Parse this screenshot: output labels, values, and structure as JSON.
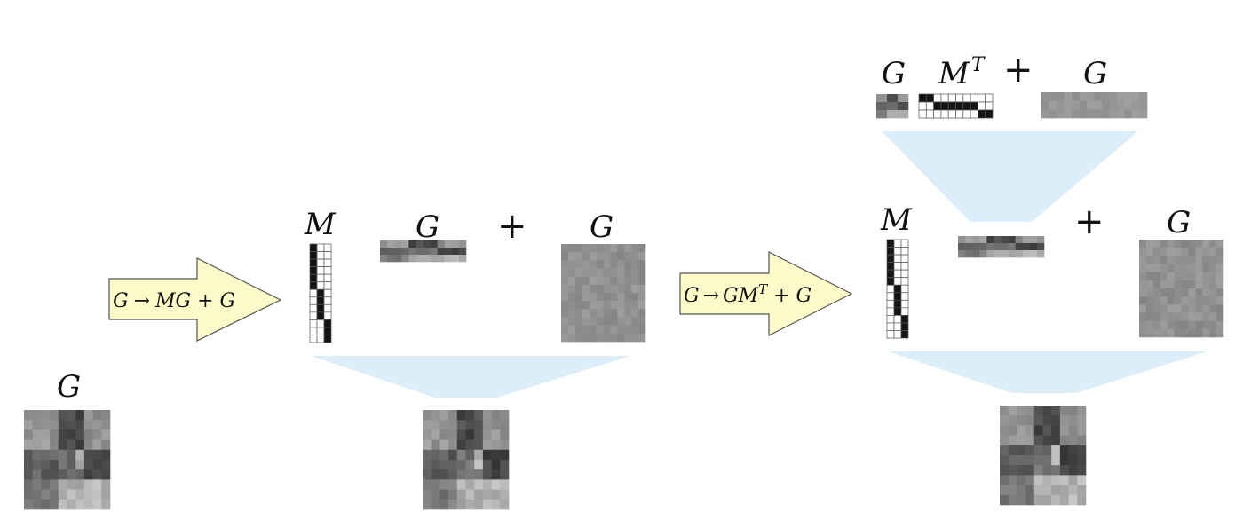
{
  "symbols": {
    "g": "G",
    "m": "M",
    "m_base": "M",
    "m_sup": "T",
    "plus": "+"
  },
  "arrows": {
    "first": {
      "pre": "G",
      "op": "→",
      "post": "MG + G"
    },
    "second": {
      "pre": "G",
      "op": "→",
      "post": "GM",
      "sup": "T",
      "tail": " + G"
    }
  },
  "colors": {
    "arrow_fill": "#fbfac8",
    "arrow_stroke": "#555555",
    "funnel": "#dbeefa",
    "matrix_on": "#141414",
    "matrix_off": "#ffffff",
    "grid_line": "#555555"
  },
  "one_hot_vertical": [
    0,
    0,
    0,
    0,
    0,
    0,
    1,
    1,
    1,
    1,
    2,
    2,
    2
  ],
  "one_hot_horizontal": [
    0,
    0,
    1,
    1,
    1,
    1,
    1,
    1,
    2,
    2
  ]
}
